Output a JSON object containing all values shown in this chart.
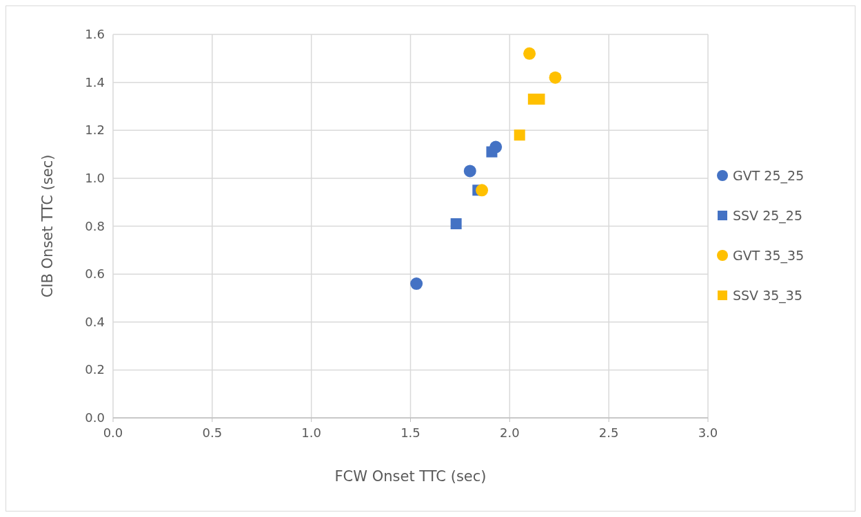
{
  "chart_data": {
    "type": "scatter",
    "xlabel": "FCW Onset TTC (sec)",
    "ylabel": "CIB Onset TTC (sec)",
    "xlim": [
      0,
      3
    ],
    "xticks": [
      {
        "value": 0,
        "label": "0.0"
      },
      {
        "value": 0.5,
        "label": "0.5"
      },
      {
        "value": 1,
        "label": "1.0"
      },
      {
        "value": 1.5,
        "label": "1.5"
      },
      {
        "value": 2,
        "label": "2.0"
      },
      {
        "value": 2.5,
        "label": "2.5"
      },
      {
        "value": 3,
        "label": "3.0"
      }
    ],
    "ylim": [
      0,
      1.6
    ],
    "yticks": [
      {
        "value": 0,
        "label": "0.0"
      },
      {
        "value": 0.2,
        "label": "0.2"
      },
      {
        "value": 0.4,
        "label": "0.4"
      },
      {
        "value": 0.6,
        "label": "0.6"
      },
      {
        "value": 0.8,
        "label": "0.8"
      },
      {
        "value": 1,
        "label": "1.0"
      },
      {
        "value": 1.2,
        "label": "1.2"
      },
      {
        "value": 1.4,
        "label": "1.4"
      },
      {
        "value": 1.6,
        "label": "1.6"
      }
    ],
    "grid": true,
    "legend": "right",
    "series": [
      {
        "name": "GVT 25_25",
        "color": "#4472c4",
        "marker": "circle",
        "x": [
          1.53,
          1.8,
          1.93
        ],
        "values": [
          0.56,
          1.03,
          1.13
        ]
      },
      {
        "name": "SSV 25_25",
        "color": "#4472c4",
        "marker": "square",
        "x": [
          1.73,
          1.84,
          1.91
        ],
        "values": [
          0.81,
          0.95,
          1.11
        ]
      },
      {
        "name": "GVT 35_35",
        "color": "#ffc000",
        "marker": "circle",
        "x": [
          2.1,
          2.23,
          1.86
        ],
        "values": [
          1.52,
          1.42,
          0.95
        ]
      },
      {
        "name": "SSV 35_35",
        "color": "#ffc000",
        "marker": "square",
        "x": [
          2.05,
          2.12,
          2.15
        ],
        "values": [
          1.18,
          1.33,
          1.33
        ]
      }
    ]
  }
}
